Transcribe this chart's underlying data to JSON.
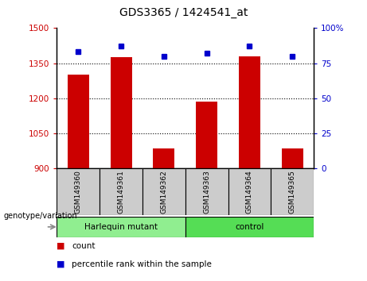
{
  "title": "GDS3365 / 1424541_at",
  "samples": [
    "GSM149360",
    "GSM149361",
    "GSM149362",
    "GSM149363",
    "GSM149364",
    "GSM149365"
  ],
  "counts": [
    1300,
    1375,
    985,
    1185,
    1380,
    985
  ],
  "percentile_ranks": [
    83,
    87,
    80,
    82,
    87,
    80
  ],
  "ylim_left": [
    900,
    1500
  ],
  "ylim_right": [
    0,
    100
  ],
  "yticks_left": [
    900,
    1050,
    1200,
    1350,
    1500
  ],
  "yticks_right": [
    0,
    25,
    50,
    75,
    100
  ],
  "ytick_labels_left": [
    "900",
    "1050",
    "1200",
    "1350",
    "1500"
  ],
  "ytick_labels_right": [
    "0",
    "25",
    "50",
    "75",
    "100%"
  ],
  "bar_color": "#cc0000",
  "dot_color": "#0000cc",
  "bar_width": 0.5,
  "groups": [
    {
      "label": "Harlequin mutant",
      "indices": [
        0,
        1,
        2
      ],
      "color": "#90ee90"
    },
    {
      "label": "control",
      "indices": [
        3,
        4,
        5
      ],
      "color": "#66dd66"
    }
  ],
  "group_label_prefix": "genotype/variation",
  "legend_count_label": "count",
  "legend_pct_label": "percentile rank within the sample",
  "tick_color_left": "#cc0000",
  "tick_color_right": "#0000cc",
  "label_bg_color": "#cccccc",
  "dot_size": 5
}
